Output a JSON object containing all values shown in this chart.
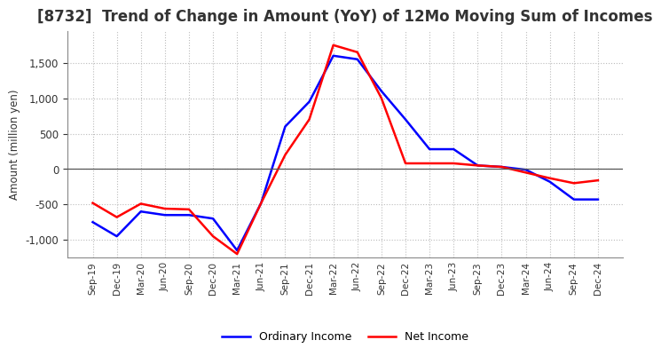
{
  "title": "[8732]  Trend of Change in Amount (YoY) of 12Mo Moving Sum of Incomes",
  "ylabel": "Amount (million yen)",
  "x_labels": [
    "Sep-19",
    "Dec-19",
    "Mar-20",
    "Jun-20",
    "Sep-20",
    "Dec-20",
    "Mar-21",
    "Jun-21",
    "Sep-21",
    "Dec-21",
    "Mar-22",
    "Jun-22",
    "Sep-22",
    "Dec-22",
    "Mar-23",
    "Jun-23",
    "Sep-23",
    "Dec-23",
    "Mar-24",
    "Jun-24",
    "Sep-24",
    "Dec-24"
  ],
  "ordinary_income": [
    -750,
    -950,
    -600,
    -650,
    -650,
    -700,
    -1150,
    -480,
    600,
    950,
    1600,
    1550,
    1100,
    700,
    280,
    280,
    50,
    30,
    -10,
    -180,
    -430,
    -430
  ],
  "net_income": [
    -480,
    -680,
    -490,
    -560,
    -570,
    -950,
    -1200,
    -480,
    200,
    700,
    1750,
    1650,
    1000,
    80,
    80,
    80,
    50,
    30,
    -50,
    -130,
    -200,
    -160
  ],
  "ordinary_color": "#0000ff",
  "net_color": "#ff0000",
  "ylim": [
    -1250,
    1950
  ],
  "yticks": [
    -1000,
    -500,
    0,
    500,
    1000,
    1500
  ],
  "background_color": "#ffffff",
  "grid_color": "#bbbbbb",
  "title_fontsize": 12,
  "legend_labels": [
    "Ordinary Income",
    "Net Income"
  ]
}
